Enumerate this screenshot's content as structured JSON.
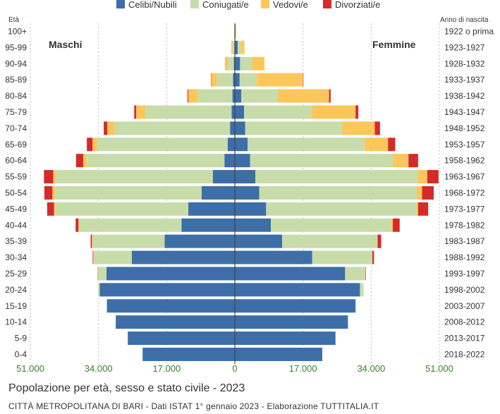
{
  "legend": [
    {
      "label": "Celibi/Nubili",
      "color": "#3d6ea8"
    },
    {
      "label": "Coniugati/e",
      "color": "#c8dcaa"
    },
    {
      "label": "Vedovi/e",
      "color": "#fbc75b"
    },
    {
      "label": "Divorziati/e",
      "color": "#d62a2a"
    }
  ],
  "headers": {
    "age": "Età",
    "birth_year": "Anno di nascita",
    "male": "Maschi",
    "female": "Femmine"
  },
  "title": "Popolazione per età, sesso e stato civile - 2023",
  "subtitle": "CITTÀ METROPOLITANA DI BARI - Dati ISTAT 1° gennaio 2023 - Elaborazione TUTTITALIA.IT",
  "chart_data": {
    "type": "bar",
    "orientation": "horizontal-pyramid",
    "x_ticks": [
      "51.000",
      "34.000",
      "17.000",
      "0",
      "17.000",
      "34.000",
      "51.000"
    ],
    "xlim": [
      -51000,
      51000
    ],
    "grid": true,
    "age_groups": [
      "100+",
      "95-99",
      "90-94",
      "85-89",
      "80-84",
      "75-79",
      "70-74",
      "65-69",
      "60-64",
      "55-59",
      "50-54",
      "45-49",
      "40-44",
      "35-39",
      "30-34",
      "25-29",
      "20-24",
      "15-19",
      "10-14",
      "5-9",
      "0-4"
    ],
    "birth_years": [
      "1922 o prima",
      "1923-1927",
      "1928-1932",
      "1933-1937",
      "1938-1942",
      "1943-1947",
      "1948-1952",
      "1953-1957",
      "1958-1962",
      "1963-1967",
      "1968-1972",
      "1973-1977",
      "1978-1982",
      "1983-1987",
      "1988-1992",
      "1993-1997",
      "1998-2002",
      "2003-2007",
      "2008-2012",
      "2013-2017",
      "2018-2022"
    ],
    "males": {
      "Celibi/Nubili": [
        30,
        80,
        250,
        450,
        600,
        800,
        1200,
        1800,
        2600,
        5500,
        8300,
        11600,
        13300,
        17500,
        25700,
        32000,
        33700,
        31900,
        29700,
        26700,
        23000
      ],
      "Coniugati/e": [
        40,
        500,
        1500,
        4000,
        8600,
        21500,
        28800,
        32500,
        34400,
        39200,
        36500,
        33200,
        25500,
        18000,
        9500,
        2200,
        400,
        0,
        0,
        0,
        0
      ],
      "Vedovi/e": [
        20,
        300,
        600,
        1400,
        2400,
        2300,
        1800,
        1200,
        800,
        600,
        700,
        300,
        200,
        150,
        100,
        0,
        0,
        0,
        0,
        0,
        0
      ],
      "Divorziati/e": [
        0,
        0,
        50,
        100,
        200,
        500,
        900,
        1400,
        1800,
        2300,
        2000,
        1700,
        700,
        300,
        150,
        50,
        0,
        0,
        0,
        0,
        0
      ]
    },
    "females": {
      "Celibi/Nubili": [
        150,
        700,
        1300,
        1200,
        1600,
        2300,
        2600,
        3200,
        3800,
        5100,
        6100,
        7800,
        9000,
        11800,
        19300,
        27500,
        31200,
        30100,
        28200,
        25100,
        21800
      ],
      "Coniugati/e": [
        100,
        800,
        3000,
        4300,
        9100,
        16800,
        24100,
        29200,
        35600,
        40500,
        39300,
        37500,
        30000,
        23700,
        15000,
        5100,
        900,
        0,
        0,
        0,
        0
      ],
      "Vedovi/e": [
        100,
        900,
        3100,
        11500,
        12800,
        11000,
        8200,
        5800,
        3900,
        2400,
        1300,
        400,
        400,
        100,
        0,
        0,
        0,
        0,
        0,
        0,
        0
      ],
      "Divorziati/e": [
        0,
        0,
        0,
        100,
        400,
        700,
        1300,
        1800,
        2400,
        2800,
        2900,
        2500,
        1700,
        900,
        400,
        100,
        0,
        0,
        0,
        0,
        0
      ]
    }
  }
}
